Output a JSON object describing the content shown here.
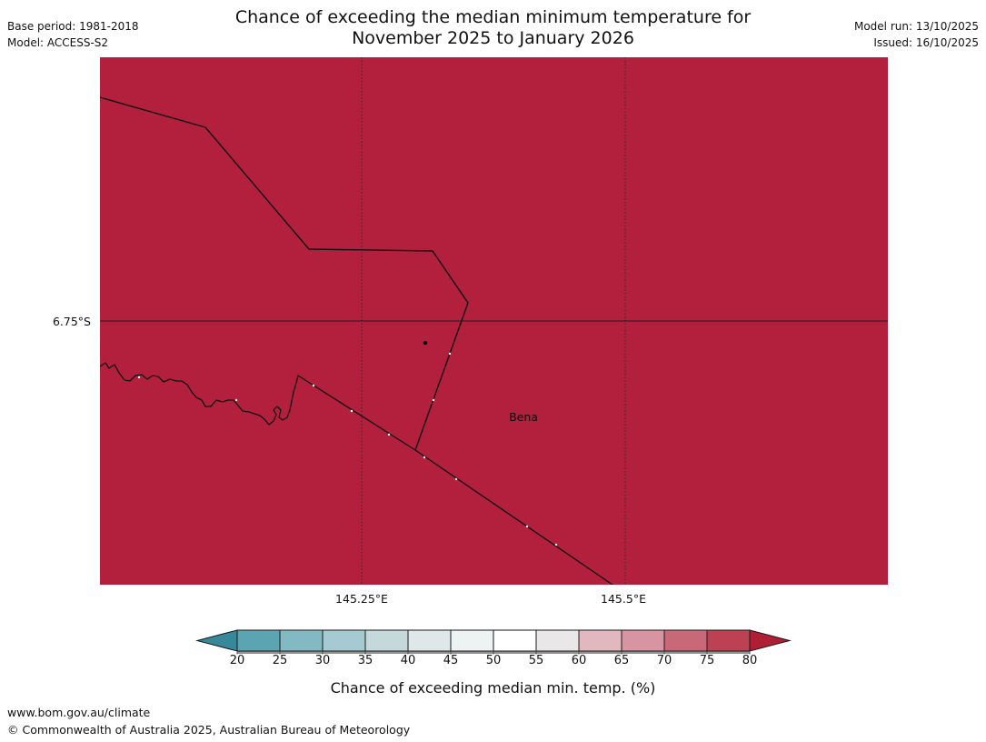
{
  "header": {
    "title_line1": "Chance of exceeding the median minimum temperature for",
    "title_line2": "November 2025 to January 2026",
    "base_period": "Base period: 1981-2018",
    "model": "Model: ACCESS-S2",
    "model_run": "Model run: 13/10/2025",
    "issued": "Issued: 16/10/2025"
  },
  "map": {
    "fill_color": "#B2203E",
    "place_label": "Bena",
    "lat_label": "6.75°S",
    "lon_labels": [
      "145.25°E",
      "145.5°E"
    ]
  },
  "chart_data": {
    "type": "heatmap",
    "title": "Chance of exceeding the median minimum temperature for November 2025 to January 2026",
    "field_description": "Probability of exceeding median minimum temperature; entire visible map region is in the > 80% class (solid dark red)",
    "region": {
      "lat_gridlines": [
        "6.75°S"
      ],
      "lon_gridlines": [
        "145.25°E",
        "145.5°E"
      ],
      "place_markers": [
        "Bena"
      ]
    },
    "colorbar": {
      "label": "Chance of exceeding median min. temp. (%)",
      "ticks": [
        20,
        25,
        30,
        35,
        40,
        45,
        50,
        55,
        60,
        65,
        70,
        75,
        80
      ],
      "range": [
        20,
        80
      ],
      "segment_colors": [
        "#5CA4B2",
        "#83B9C3",
        "#A6CAD1",
        "#C5D9DC",
        "#DEE8E9",
        "#EFF2F2",
        "#FFFFFF",
        "#E9E7E7",
        "#E2B8BF",
        "#D795A1",
        "#C96878",
        "#BC4153"
      ],
      "arrow_low_color": "#36899B",
      "arrow_high_color": "#B01E36",
      "outline_color": "#1a1a1a",
      "shadow_color": "#8f8f8f"
    }
  },
  "footer": {
    "url": "www.bom.gov.au/climate",
    "copyright": "© Commonwealth of Australia 2025, Australian Bureau of Meteorology"
  }
}
